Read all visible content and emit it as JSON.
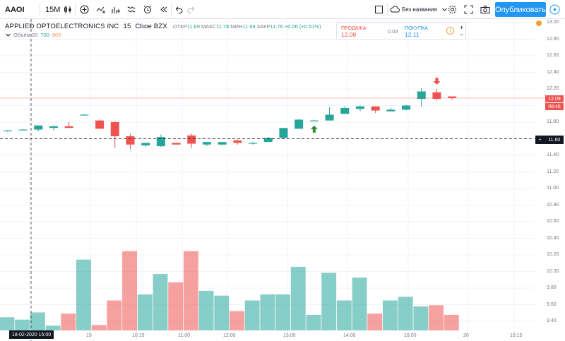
{
  "toolbar": {
    "symbol": "AAOI",
    "interval": "15M",
    "layout_name": "Без названия",
    "publish_label": "Опубликовать"
  },
  "legend": {
    "company": "APPLIED OPTOELECTRONICS INC",
    "interval": "15",
    "exchange": "Cboe BZX",
    "open_label": "ОТКР",
    "open": "11.69",
    "high_label": "МАКС",
    "high": "11.78",
    "low_label": "МИН",
    "low": "11.69",
    "close_label": "ЗАКР",
    "close": "11.76",
    "change": "+0.06 (+0.51%)",
    "volume_label": "Объём 20",
    "volume_v1": "700",
    "volume_v2": "809"
  },
  "trade_panel": {
    "sell_label": "ПРОДАЖА",
    "sell_price": "12.08",
    "spread": "0.03",
    "buy_label": "ПОКУПКА",
    "buy_price": "12.11",
    "plus": "+",
    "minus": "−"
  },
  "price_axis": {
    "ticks": [
      "13.00",
      "12.80",
      "12.60",
      "12.40",
      "12.20",
      "12.00",
      "11.80",
      "11.60",
      "11.40",
      "11.20",
      "11.00",
      "10.80",
      "10.60",
      "10.40",
      "10.20",
      "10.00",
      "9.80",
      "9.60",
      "9.40"
    ],
    "current_price": "12.09",
    "countdown": "08:46",
    "crosshair_price": "11.60"
  },
  "time_axis": {
    "ticks": [
      "19",
      "10:15",
      "11:00",
      "12:00",
      "13:00",
      "14:00",
      "15:00",
      "20",
      "10:15"
    ],
    "crosshair_date": "18-02-2020   15:00"
  },
  "colors": {
    "up": "#26a69a",
    "down": "#ef5350",
    "accent": "#2196f3"
  },
  "chart_data": {
    "type": "candlestick",
    "x": [
      "c0",
      "c1",
      "c2",
      "c3",
      "c4",
      "c5",
      "c6",
      "c7",
      "c8",
      "c9",
      "c10",
      "c11",
      "c12",
      "c13",
      "c14",
      "c15",
      "c16",
      "c17",
      "c18",
      "c19",
      "c20",
      "c21",
      "c22",
      "c23",
      "c24",
      "c25",
      "c26",
      "c27",
      "c28",
      "c29"
    ],
    "open": [
      11.69,
      11.71,
      11.71,
      11.73,
      11.75,
      11.89,
      11.82,
      11.8,
      11.63,
      11.52,
      11.51,
      11.55,
      11.64,
      11.53,
      11.53,
      11.58,
      11.54,
      11.56,
      11.61,
      11.72,
      11.82,
      11.82,
      11.9,
      11.96,
      11.99,
      11.93,
      11.95,
      12.08,
      12.16,
      12.11
    ],
    "high": [
      11.7,
      11.72,
      11.76,
      11.76,
      11.8,
      11.9,
      11.83,
      11.81,
      11.66,
      11.55,
      11.65,
      11.55,
      11.66,
      11.56,
      11.56,
      11.59,
      11.56,
      11.62,
      11.72,
      11.84,
      11.83,
      11.98,
      11.99,
      12.0,
      11.99,
      11.97,
      12.01,
      12.21,
      12.2,
      12.11
    ],
    "low": [
      11.68,
      11.7,
      11.69,
      11.7,
      11.74,
      11.89,
      11.73,
      11.49,
      11.47,
      11.5,
      11.5,
      11.53,
      11.49,
      11.51,
      11.52,
      11.53,
      11.53,
      11.56,
      11.6,
      11.72,
      11.81,
      11.82,
      11.9,
      11.93,
      11.91,
      11.93,
      11.94,
      11.99,
      12.06,
      12.07
    ],
    "close": [
      11.7,
      11.71,
      11.76,
      11.75,
      11.73,
      11.89,
      11.72,
      11.63,
      11.53,
      11.55,
      11.62,
      11.53,
      11.54,
      11.56,
      11.56,
      11.55,
      11.55,
      11.61,
      11.73,
      11.83,
      11.82,
      11.89,
      11.97,
      11.99,
      11.94,
      11.95,
      12.0,
      12.17,
      12.08,
      12.09
    ],
    "volume": [
      110,
      90,
      150,
      40,
      140,
      590,
      45,
      250,
      660,
      300,
      470,
      400,
      660,
      330,
      290,
      160,
      250,
      300,
      300,
      530,
      130,
      480,
      250,
      440,
      140,
      250,
      280,
      200,
      210,
      130
    ],
    "ylim": [
      9.34,
      13.04
    ],
    "signals": [
      {
        "index": 20,
        "type": "buy"
      },
      {
        "index": 28,
        "type": "sell"
      }
    ]
  }
}
